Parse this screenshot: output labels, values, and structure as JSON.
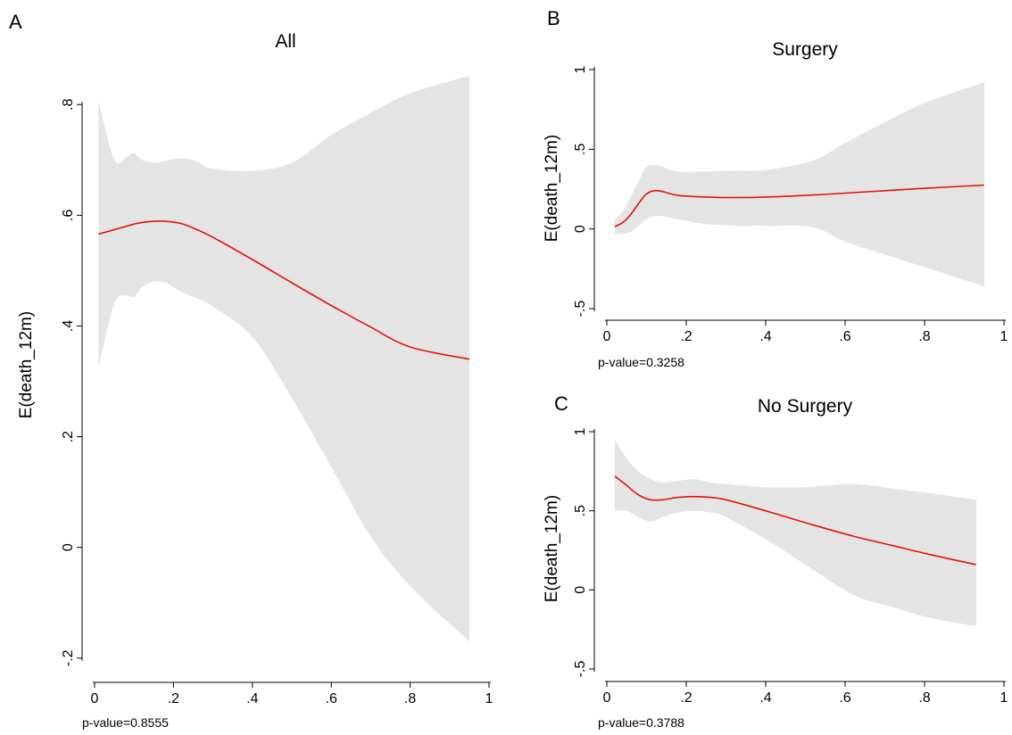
{
  "colors": {
    "line": "#e3120b",
    "band": "#e4e4e4",
    "axis": "#000000"
  },
  "chart_data": [
    {
      "letter": "A",
      "type": "line",
      "title": "All",
      "xlabel": "",
      "ylabel": "E(death_12m)",
      "xlim": [
        0,
        1
      ],
      "ylim": [
        -0.2,
        0.8
      ],
      "xticks": [
        "0",
        ".2",
        ".4",
        ".6",
        ".8",
        "1"
      ],
      "yticks": [
        "-.2",
        "0",
        ".2",
        ".4",
        ".6",
        ".8"
      ],
      "pvalue": "p-value=0.8555",
      "series": [
        {
          "x": [
            0.01,
            0.05,
            0.08,
            0.1,
            0.12,
            0.15,
            0.18,
            0.22,
            0.26,
            0.3,
            0.4,
            0.5,
            0.6,
            0.7,
            0.8,
            0.95
          ],
          "y": [
            0.566,
            0.574,
            0.58,
            0.584,
            0.587,
            0.589,
            0.589,
            0.585,
            0.574,
            0.56,
            0.52,
            0.478,
            0.437,
            0.398,
            0.362,
            0.34
          ],
          "lo": [
            0.326,
            0.44,
            0.455,
            0.452,
            0.47,
            0.48,
            0.478,
            0.462,
            0.45,
            0.435,
            0.38,
            0.27,
            0.145,
            0.02,
            -0.07,
            -0.17
          ],
          "hi": [
            0.806,
            0.7,
            0.705,
            0.712,
            0.7,
            0.695,
            0.698,
            0.703,
            0.697,
            0.684,
            0.68,
            0.695,
            0.745,
            0.785,
            0.82,
            0.852
          ]
        }
      ]
    },
    {
      "letter": "B",
      "type": "line",
      "title": "Surgery",
      "xlabel": "",
      "ylabel": "E(death_12m)",
      "xlim": [
        0,
        1
      ],
      "ylim": [
        -0.5,
        1
      ],
      "xticks": [
        "0",
        ".2",
        ".4",
        ".6",
        ".8",
        "1"
      ],
      "yticks": [
        "-.5",
        "0",
        ".5",
        "1"
      ],
      "pvalue": "p-value=0.3258",
      "series": [
        {
          "x": [
            0.02,
            0.04,
            0.06,
            0.08,
            0.1,
            0.12,
            0.14,
            0.18,
            0.25,
            0.32,
            0.4,
            0.52,
            0.6,
            0.7,
            0.8,
            0.95
          ],
          "y": [
            0.015,
            0.04,
            0.09,
            0.16,
            0.22,
            0.24,
            0.235,
            0.21,
            0.2,
            0.197,
            0.2,
            0.213,
            0.225,
            0.24,
            0.255,
            0.275
          ],
          "lo": [
            -0.03,
            -0.03,
            -0.02,
            0.02,
            0.06,
            0.08,
            0.08,
            0.06,
            0.03,
            0.02,
            0.02,
            0.01,
            -0.08,
            -0.16,
            -0.24,
            -0.36
          ],
          "hi": [
            0.06,
            0.11,
            0.2,
            0.3,
            0.39,
            0.4,
            0.39,
            0.36,
            0.36,
            0.365,
            0.37,
            0.43,
            0.54,
            0.67,
            0.79,
            0.92
          ]
        }
      ]
    },
    {
      "letter": "C",
      "type": "line",
      "title": "No Surgery",
      "xlabel": "",
      "ylabel": "E(death_12m)",
      "xlim": [
        0,
        1
      ],
      "ylim": [
        -0.5,
        1
      ],
      "xticks": [
        "0",
        ".2",
        ".4",
        ".6",
        ".8",
        "1"
      ],
      "yticks": [
        "-.5",
        "0",
        ".5",
        "1"
      ],
      "pvalue": "p-value=0.3788",
      "series": [
        {
          "x": [
            0.02,
            0.05,
            0.08,
            0.11,
            0.14,
            0.18,
            0.22,
            0.26,
            0.3,
            0.4,
            0.5,
            0.62,
            0.72,
            0.82,
            0.93
          ],
          "y": [
            0.72,
            0.66,
            0.6,
            0.57,
            0.57,
            0.585,
            0.59,
            0.585,
            0.57,
            0.5,
            0.425,
            0.34,
            0.28,
            0.22,
            0.16
          ],
          "lo": [
            0.5,
            0.5,
            0.46,
            0.43,
            0.46,
            0.49,
            0.5,
            0.49,
            0.46,
            0.32,
            0.16,
            -0.03,
            -0.11,
            -0.18,
            -0.23
          ],
          "hi": [
            0.95,
            0.83,
            0.75,
            0.7,
            0.68,
            0.69,
            0.7,
            0.68,
            0.67,
            0.65,
            0.65,
            0.67,
            0.64,
            0.61,
            0.57
          ]
        }
      ]
    }
  ]
}
